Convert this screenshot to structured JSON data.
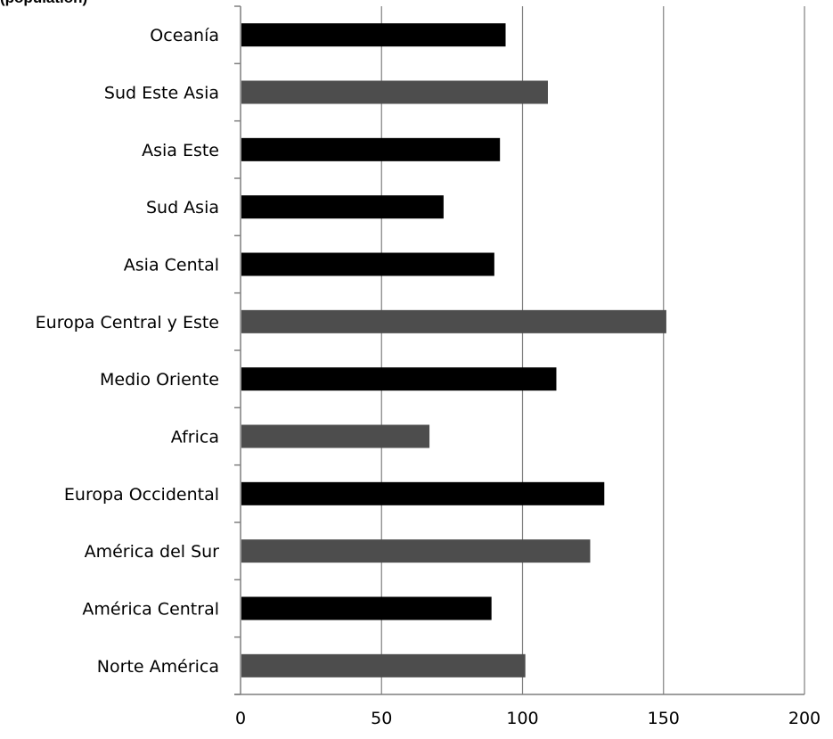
{
  "chart_data": {
    "type": "bar",
    "orientation": "horizontal",
    "title": "(population)",
    "xlabel": "",
    "ylabel": "",
    "xlim": [
      0,
      200
    ],
    "x_ticks": [
      "0",
      "50",
      "100",
      "150",
      "200"
    ],
    "grid": "vertical",
    "legend": "none",
    "categories": [
      "Oceanía",
      "Sud Este Asia",
      "Asia Este",
      "Sud Asia",
      "Asia Cental",
      "Europa Central y Este",
      "Medio Oriente",
      "Africa",
      "Europa Occidental",
      "América del Sur",
      "América Central",
      "Norte América"
    ],
    "values": [
      94,
      109,
      92,
      72,
      90,
      151,
      112,
      67,
      129,
      124,
      89,
      101
    ],
    "bar_colors": [
      "#000000",
      "#4d4d4d",
      "#000000",
      "#000000",
      "#000000",
      "#4d4d4d",
      "#000000",
      "#4d4d4d",
      "#000000",
      "#4d4d4d",
      "#000000",
      "#4d4d4d"
    ],
    "grid_color": "#7f7f7f",
    "axis_color": "#7f7f7f"
  }
}
